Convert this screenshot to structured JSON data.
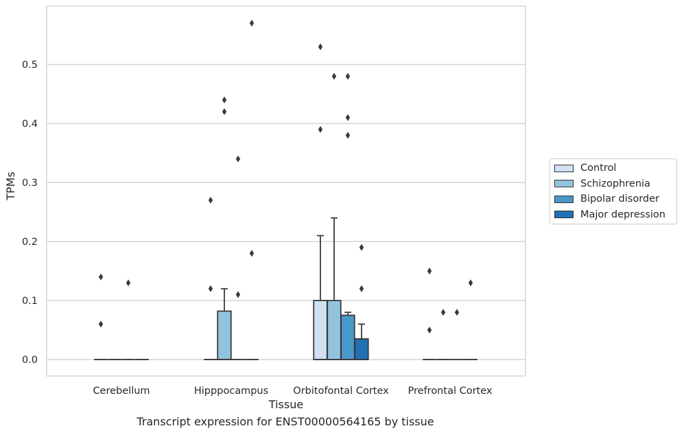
{
  "chart_data": {
    "type": "box",
    "xlabel": "Tissue",
    "ylabel": "TPMs",
    "caption": "Transcript expression for ENST00000564165 by tissue",
    "categories": [
      "Cerebellum",
      "Hipppocampus",
      "Orbitofontal Cortex",
      "Prefrontal Cortex"
    ],
    "ylim": [
      -0.028,
      0.6
    ],
    "yticks": [
      0.0,
      0.1,
      0.2,
      0.3,
      0.4,
      0.5
    ],
    "ytick_labels": [
      "0.0",
      "0.1",
      "0.2",
      "0.3",
      "0.4",
      "0.5"
    ],
    "grid": "horizontal",
    "legend_placement": "outside-right",
    "series": [
      {
        "name": "Control",
        "color": "#cfe1f2",
        "boxes": [
          {
            "q1": 0,
            "median": 0,
            "q3": 0,
            "whisker_low": 0,
            "whisker_high": 0,
            "outliers": [
              0.06,
              0.14
            ]
          },
          {
            "q1": 0,
            "median": 0,
            "q3": 0,
            "whisker_low": 0,
            "whisker_high": 0,
            "outliers": [
              0.12,
              0.27
            ]
          },
          {
            "q1": 0,
            "median": 0,
            "q3": 0.1,
            "whisker_low": 0,
            "whisker_high": 0.21,
            "outliers": [
              0.39,
              0.53
            ]
          },
          {
            "q1": 0,
            "median": 0,
            "q3": 0,
            "whisker_low": 0,
            "whisker_high": 0,
            "outliers": [
              0.05,
              0.15
            ]
          }
        ]
      },
      {
        "name": "Schizophrenia",
        "color": "#93c4de",
        "boxes": [
          {
            "q1": 0,
            "median": 0,
            "q3": 0,
            "whisker_low": 0,
            "whisker_high": 0,
            "outliers": []
          },
          {
            "q1": 0,
            "median": 0,
            "q3": 0.082,
            "whisker_low": 0,
            "whisker_high": 0.12,
            "outliers": [
              0.42,
              0.44
            ]
          },
          {
            "q1": 0,
            "median": 0,
            "q3": 0.1,
            "whisker_low": 0,
            "whisker_high": 0.24,
            "outliers": [
              0.48
            ]
          },
          {
            "q1": 0,
            "median": 0,
            "q3": 0,
            "whisker_low": 0,
            "whisker_high": 0,
            "outliers": [
              0.08
            ]
          }
        ]
      },
      {
        "name": "Bipolar disorder",
        "color": "#4a98c9",
        "boxes": [
          {
            "q1": 0,
            "median": 0,
            "q3": 0,
            "whisker_low": 0,
            "whisker_high": 0,
            "outliers": [
              0.13
            ]
          },
          {
            "q1": 0,
            "median": 0,
            "q3": 0,
            "whisker_low": 0,
            "whisker_high": 0,
            "outliers": [
              0.11,
              0.34
            ]
          },
          {
            "q1": 0,
            "median": 0,
            "q3": 0.075,
            "whisker_low": 0,
            "whisker_high": 0.08,
            "outliers": [
              0.38,
              0.41,
              0.48
            ]
          },
          {
            "q1": 0,
            "median": 0,
            "q3": 0,
            "whisker_low": 0,
            "whisker_high": 0,
            "outliers": [
              0.08
            ]
          }
        ]
      },
      {
        "name": "Major depression",
        "color": "#2070b4",
        "boxes": [
          {
            "q1": 0,
            "median": 0,
            "q3": 0,
            "whisker_low": 0,
            "whisker_high": 0,
            "outliers": []
          },
          {
            "q1": 0,
            "median": 0,
            "q3": 0,
            "whisker_low": 0,
            "whisker_high": 0,
            "outliers": [
              0.18,
              0.57
            ]
          },
          {
            "q1": 0,
            "median": 0,
            "q3": 0.035,
            "whisker_low": 0,
            "whisker_high": 0.06,
            "outliers": [
              0.12,
              0.19
            ]
          },
          {
            "q1": 0,
            "median": 0,
            "q3": 0,
            "whisker_low": 0,
            "whisker_high": 0,
            "outliers": [
              0.13
            ]
          }
        ]
      }
    ]
  }
}
